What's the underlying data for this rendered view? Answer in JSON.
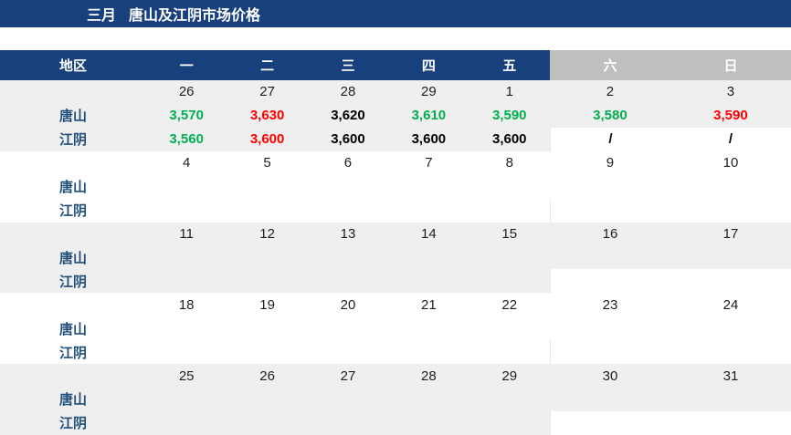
{
  "title": {
    "month": "三月",
    "text": "唐山及江阴市场价格"
  },
  "colors": {
    "navy": "#17407D",
    "weekend_header_gray": "#BFBFBF",
    "band_gray": "#EFEFEF",
    "green": "#00B050",
    "red": "#FF0000",
    "black": "#000000",
    "white": "#FFFFFF"
  },
  "table": {
    "region_header": "地区",
    "day_headers": [
      "一",
      "二",
      "三",
      "四",
      "五",
      "六",
      "日"
    ],
    "weeks": [
      {
        "dates": [
          "26",
          "27",
          "28",
          "29",
          "1",
          "2",
          "3"
        ],
        "rows": [
          {
            "label": "唐山",
            "values": [
              "3,570",
              "3,630",
              "3,620",
              "3,610",
              "3,590",
              "3,580",
              "3,590"
            ],
            "colors": [
              "green",
              "red",
              "black",
              "green",
              "green",
              "green",
              "red"
            ]
          },
          {
            "label": "江阴",
            "values": [
              "3,560",
              "3,600",
              "3,600",
              "3,600",
              "3,600",
              "/",
              "/"
            ],
            "colors": [
              "green",
              "red",
              "black",
              "black",
              "black",
              "black",
              "black"
            ]
          }
        ]
      },
      {
        "dates": [
          "4",
          "5",
          "6",
          "7",
          "8",
          "9",
          "10"
        ],
        "rows": [
          {
            "label": "唐山",
            "values": [
              "",
              "",
              "",
              "",
              "",
              "",
              ""
            ],
            "colors": [
              "black",
              "black",
              "black",
              "black",
              "black",
              "black",
              "black"
            ]
          },
          {
            "label": "江阴",
            "values": [
              "",
              "",
              "",
              "",
              "",
              "",
              ""
            ],
            "colors": [
              "black",
              "black",
              "black",
              "black",
              "black",
              "black",
              "black"
            ]
          }
        ]
      },
      {
        "dates": [
          "11",
          "12",
          "13",
          "14",
          "15",
          "16",
          "17"
        ],
        "rows": [
          {
            "label": "唐山",
            "values": [
              "",
              "",
              "",
              "",
              "",
              "",
              ""
            ],
            "colors": [
              "black",
              "black",
              "black",
              "black",
              "black",
              "black",
              "black"
            ]
          },
          {
            "label": "江阴",
            "values": [
              "",
              "",
              "",
              "",
              "",
              "",
              ""
            ],
            "colors": [
              "black",
              "black",
              "black",
              "black",
              "black",
              "black",
              "black"
            ]
          }
        ]
      },
      {
        "dates": [
          "18",
          "19",
          "20",
          "21",
          "22",
          "23",
          "24"
        ],
        "rows": [
          {
            "label": "唐山",
            "values": [
              "",
              "",
              "",
              "",
              "",
              "",
              ""
            ],
            "colors": [
              "black",
              "black",
              "black",
              "black",
              "black",
              "black",
              "black"
            ]
          },
          {
            "label": "江阴",
            "values": [
              "",
              "",
              "",
              "",
              "",
              "",
              ""
            ],
            "colors": [
              "black",
              "black",
              "black",
              "black",
              "black",
              "black",
              "black"
            ]
          }
        ]
      },
      {
        "dates": [
          "25",
          "26",
          "27",
          "28",
          "29",
          "30",
          "31"
        ],
        "rows": [
          {
            "label": "唐山",
            "values": [
              "",
              "",
              "",
              "",
              "",
              "",
              ""
            ],
            "colors": [
              "black",
              "black",
              "black",
              "black",
              "black",
              "black",
              "black"
            ]
          },
          {
            "label": "江阴",
            "values": [
              "",
              "",
              "",
              "",
              "",
              "",
              ""
            ],
            "colors": [
              "black",
              "black",
              "black",
              "black",
              "black",
              "black",
              "black"
            ]
          }
        ]
      }
    ]
  }
}
